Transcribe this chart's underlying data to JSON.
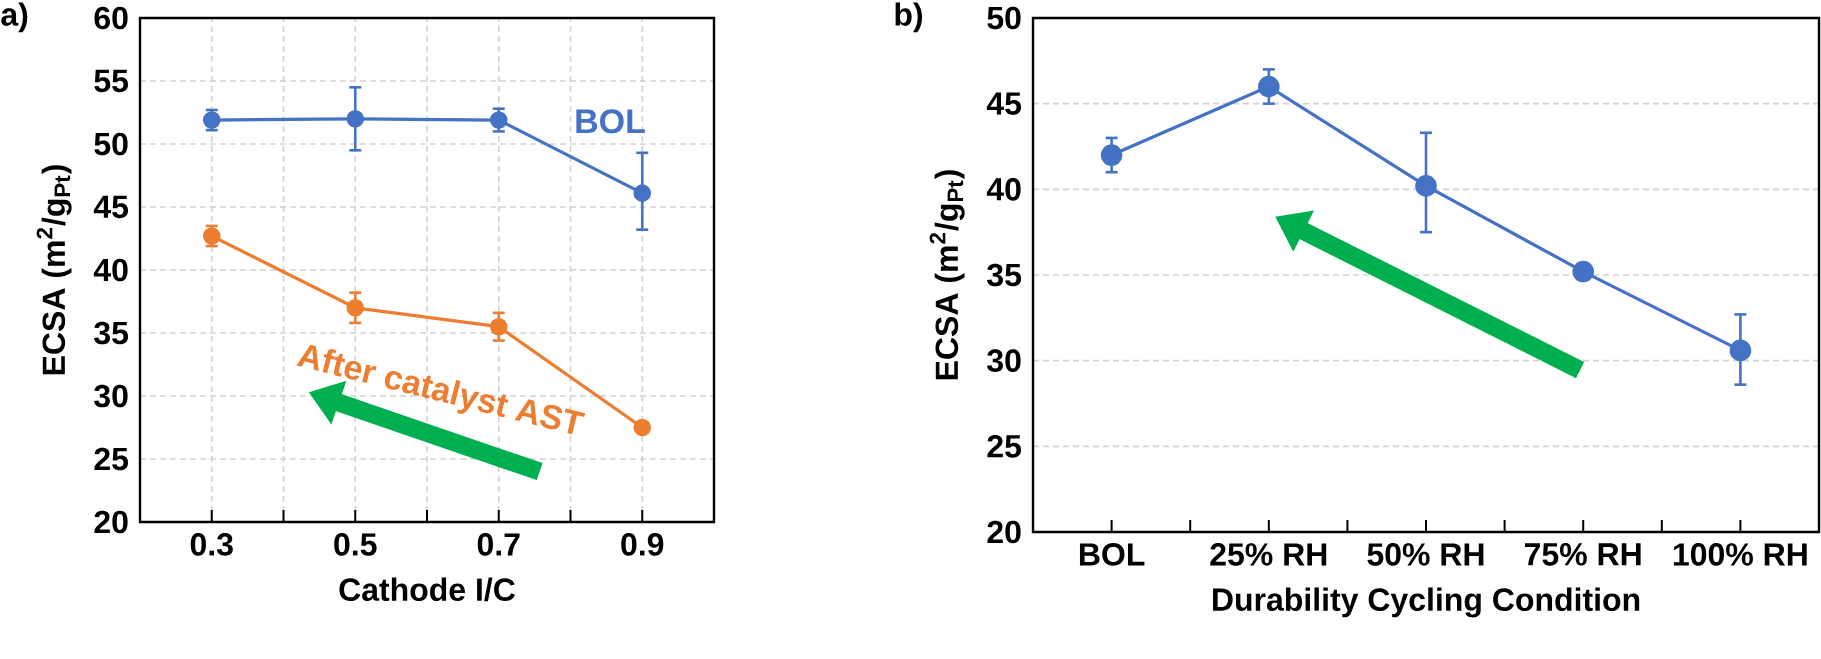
{
  "chart_data": [
    {
      "type": "line",
      "title": "a)",
      "xlabel": "Cathode  I/C",
      "ylabel": "ECSA (m$^{2}$/g$_{Pt}$)",
      "x": [
        0.3,
        0.5,
        0.7,
        0.9
      ],
      "xlim": [
        0.2,
        1.0
      ],
      "xticks": [
        0.3,
        {
          "value": 0.4,
          "label": null
        },
        0.5,
        {
          "value": 0.6,
          "label": null
        },
        0.7,
        {
          "value": 0.8,
          "label": null
        },
        0.9
      ],
      "ylim": [
        20,
        60
      ],
      "yticks": [
        20,
        25,
        30,
        35,
        40,
        45,
        50,
        55,
        60
      ],
      "grid": true,
      "marker": "circle",
      "series": [
        {
          "name": "BOL",
          "color": "#4472c4",
          "values": [
            51.9,
            52.0,
            51.9,
            46.1
          ],
          "errors": [
            0.8,
            2.5,
            0.9,
            [
              43.2,
              49.3
            ]
          ]
        },
        {
          "name": "After catalyst  AST",
          "color": "#ed7d31",
          "values": [
            42.7,
            37.0,
            35.5,
            27.5
          ],
          "errors": [
            0.8,
            [
              35.8,
              38.2
            ],
            [
              34.4,
              36.6
            ],
            null
          ]
        }
      ]
    },
    {
      "type": "line",
      "title": "b)",
      "xlabel": "Durability  Cycling Condition",
      "ylabel": "ECSA (m$^{2}$/g$_{Pt}$)",
      "categories": [
        "BOL",
        "25% RH",
        "50% RH",
        "75% RH",
        "100% RH"
      ],
      "ylim": [
        20,
        50
      ],
      "yticks": [
        20,
        25,
        30,
        35,
        40,
        45,
        50
      ],
      "grid": "y",
      "marker": "circle",
      "series": [
        {
          "color": "#4472c4",
          "values": [
            42.0,
            46.0,
            40.2,
            35.2,
            30.6
          ],
          "errors": [
            1.0,
            1.0,
            [
              37.5,
              43.3
            ],
            null,
            [
              28.6,
              32.7
            ]
          ]
        }
      ]
    }
  ]
}
